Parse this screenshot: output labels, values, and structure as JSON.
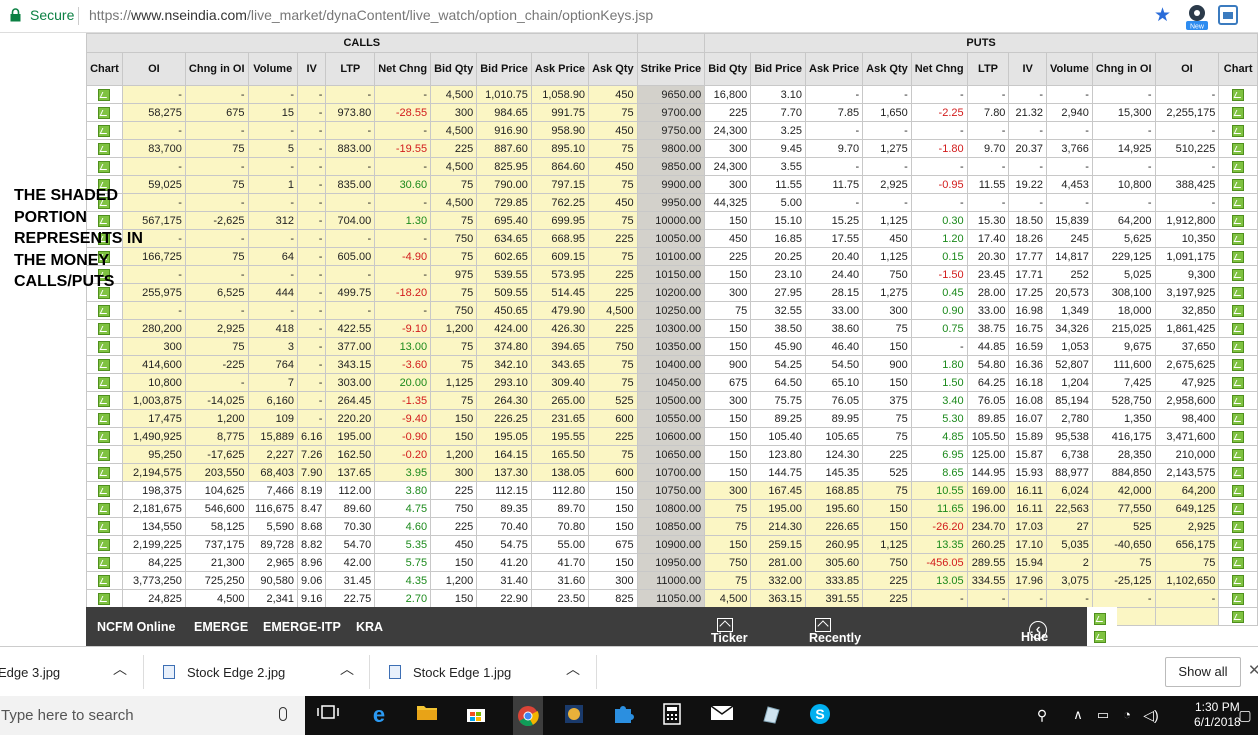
{
  "browser": {
    "secure_label": "Secure",
    "url_prefix": "https://",
    "url_host": "www.nseindia.com",
    "url_path": "/live_market/dynaContent/live_watch/option_chain/optionKeys.jsp"
  },
  "colors": {
    "itm": "#fbf6c4",
    "strike": "#d3d1cb",
    "neg": "#d21c1c",
    "pos": "#1c8a1c",
    "header": "#e4e4e4",
    "footbar": "#3d3d3d"
  },
  "groups": {
    "calls": "CALLS",
    "puts": "PUTS"
  },
  "headers": {
    "calls": [
      "Chart",
      "OI",
      "Chng in OI",
      "Volume",
      "IV",
      "LTP",
      "Net Chng",
      "Bid Qty",
      "Bid Price",
      "Ask Price",
      "Ask Qty"
    ],
    "strike": "Strike Price",
    "puts": [
      "Bid Qty",
      "Bid Price",
      "Ask Price",
      "Ask Qty",
      "Net Chng",
      "LTP",
      "IV",
      "Volume",
      "Chng in OI",
      "OI",
      "Chart"
    ]
  },
  "rows": [
    {
      "strike": "9650.00",
      "call_itm": true,
      "put_itm": false,
      "calls": [
        "-",
        "-",
        "-",
        "-",
        "-",
        "-",
        "4,500",
        "1,010.75",
        "1,058.90",
        "450"
      ],
      "puts": [
        "16,800",
        "3.10",
        "-",
        "-",
        "-",
        "-",
        "-",
        "-",
        "-",
        "-"
      ]
    },
    {
      "strike": "9700.00",
      "call_itm": true,
      "put_itm": false,
      "calls": [
        "58,275",
        "675",
        "15",
        "-",
        "973.80",
        "-28.55",
        "300",
        "984.65",
        "991.75",
        "75"
      ],
      "puts": [
        "225",
        "7.70",
        "7.85",
        "1,650",
        "-2.25",
        "7.80",
        "21.32",
        "2,940",
        "15,300",
        "2,255,175"
      ]
    },
    {
      "strike": "9750.00",
      "call_itm": true,
      "put_itm": false,
      "calls": [
        "-",
        "-",
        "-",
        "-",
        "-",
        "-",
        "4,500",
        "916.90",
        "958.90",
        "450"
      ],
      "puts": [
        "24,300",
        "3.25",
        "-",
        "-",
        "-",
        "-",
        "-",
        "-",
        "-",
        "-"
      ]
    },
    {
      "strike": "9800.00",
      "call_itm": true,
      "put_itm": false,
      "calls": [
        "83,700",
        "75",
        "5",
        "-",
        "883.00",
        "-19.55",
        "225",
        "887.60",
        "895.10",
        "75"
      ],
      "puts": [
        "300",
        "9.45",
        "9.70",
        "1,275",
        "-1.80",
        "9.70",
        "20.37",
        "3,766",
        "14,925",
        "510,225"
      ]
    },
    {
      "strike": "9850.00",
      "call_itm": true,
      "put_itm": false,
      "calls": [
        "-",
        "-",
        "-",
        "-",
        "-",
        "-",
        "4,500",
        "825.95",
        "864.60",
        "450"
      ],
      "puts": [
        "24,300",
        "3.55",
        "-",
        "-",
        "-",
        "-",
        "-",
        "-",
        "-",
        "-"
      ]
    },
    {
      "strike": "9900.00",
      "call_itm": true,
      "put_itm": false,
      "calls": [
        "59,025",
        "75",
        "1",
        "-",
        "835.00",
        "30.60",
        "75",
        "790.00",
        "797.15",
        "75"
      ],
      "puts": [
        "300",
        "11.55",
        "11.75",
        "2,925",
        "-0.95",
        "11.55",
        "19.22",
        "4,453",
        "10,800",
        "388,425"
      ]
    },
    {
      "strike": "9950.00",
      "call_itm": true,
      "put_itm": false,
      "calls": [
        "-",
        "-",
        "-",
        "-",
        "-",
        "-",
        "4,500",
        "729.85",
        "762.25",
        "450"
      ],
      "puts": [
        "44,325",
        "5.00",
        "-",
        "-",
        "-",
        "-",
        "-",
        "-",
        "-",
        "-"
      ]
    },
    {
      "strike": "10000.00",
      "call_itm": true,
      "put_itm": false,
      "calls": [
        "567,175",
        "-2,625",
        "312",
        "-",
        "704.00",
        "1.30",
        "75",
        "695.40",
        "699.95",
        "75"
      ],
      "puts": [
        "150",
        "15.10",
        "15.25",
        "1,125",
        "0.30",
        "15.30",
        "18.50",
        "15,839",
        "64,200",
        "1,912,800"
      ]
    },
    {
      "strike": "10050.00",
      "call_itm": true,
      "put_itm": false,
      "calls": [
        "-",
        "-",
        "-",
        "-",
        "-",
        "-",
        "750",
        "634.65",
        "668.95",
        "225"
      ],
      "puts": [
        "450",
        "16.85",
        "17.55",
        "450",
        "1.20",
        "17.40",
        "18.26",
        "245",
        "5,625",
        "10,350"
      ]
    },
    {
      "strike": "10100.00",
      "call_itm": true,
      "put_itm": false,
      "calls": [
        "166,725",
        "75",
        "64",
        "-",
        "605.00",
        "-4.90",
        "75",
        "602.65",
        "609.15",
        "75"
      ],
      "puts": [
        "225",
        "20.25",
        "20.40",
        "1,125",
        "0.15",
        "20.30",
        "17.77",
        "14,817",
        "229,125",
        "1,091,175"
      ]
    },
    {
      "strike": "10150.00",
      "call_itm": true,
      "put_itm": false,
      "calls": [
        "-",
        "-",
        "-",
        "-",
        "-",
        "-",
        "975",
        "539.55",
        "573.95",
        "225"
      ],
      "puts": [
        "150",
        "23.10",
        "24.40",
        "750",
        "-1.50",
        "23.45",
        "17.71",
        "252",
        "5,025",
        "9,300"
      ]
    },
    {
      "strike": "10200.00",
      "call_itm": true,
      "put_itm": false,
      "calls": [
        "255,975",
        "6,525",
        "444",
        "-",
        "499.75",
        "-18.20",
        "75",
        "509.55",
        "514.45",
        "225"
      ],
      "puts": [
        "300",
        "27.95",
        "28.15",
        "1,275",
        "0.45",
        "28.00",
        "17.25",
        "20,573",
        "308,100",
        "3,197,925"
      ]
    },
    {
      "strike": "10250.00",
      "call_itm": true,
      "put_itm": false,
      "calls": [
        "-",
        "-",
        "-",
        "-",
        "-",
        "-",
        "750",
        "450.65",
        "479.90",
        "4,500"
      ],
      "puts": [
        "75",
        "32.55",
        "33.00",
        "300",
        "0.90",
        "33.00",
        "16.98",
        "1,349",
        "18,000",
        "32,850"
      ]
    },
    {
      "strike": "10300.00",
      "call_itm": true,
      "put_itm": false,
      "calls": [
        "280,200",
        "2,925",
        "418",
        "-",
        "422.55",
        "-9.10",
        "1,200",
        "424.00",
        "426.30",
        "225"
      ],
      "puts": [
        "150",
        "38.50",
        "38.60",
        "75",
        "0.75",
        "38.75",
        "16.75",
        "34,326",
        "215,025",
        "1,861,425"
      ]
    },
    {
      "strike": "10350.00",
      "call_itm": true,
      "put_itm": false,
      "calls": [
        "300",
        "75",
        "3",
        "-",
        "377.00",
        "13.00",
        "75",
        "374.80",
        "394.65",
        "750"
      ],
      "puts": [
        "150",
        "45.90",
        "46.40",
        "150",
        "-",
        "44.85",
        "16.59",
        "1,053",
        "9,675",
        "37,650"
      ]
    },
    {
      "strike": "10400.00",
      "call_itm": true,
      "put_itm": false,
      "calls": [
        "414,600",
        "-225",
        "764",
        "-",
        "343.15",
        "-3.60",
        "75",
        "342.10",
        "343.65",
        "75"
      ],
      "puts": [
        "900",
        "54.25",
        "54.50",
        "900",
        "1.80",
        "54.80",
        "16.36",
        "52,807",
        "111,600",
        "2,675,625"
      ]
    },
    {
      "strike": "10450.00",
      "call_itm": true,
      "put_itm": false,
      "calls": [
        "10,800",
        "-",
        "7",
        "-",
        "303.00",
        "20.00",
        "1,125",
        "293.10",
        "309.40",
        "75"
      ],
      "puts": [
        "675",
        "64.50",
        "65.10",
        "150",
        "1.50",
        "64.25",
        "16.18",
        "1,204",
        "7,425",
        "47,925"
      ]
    },
    {
      "strike": "10500.00",
      "call_itm": true,
      "put_itm": false,
      "calls": [
        "1,003,875",
        "-14,025",
        "6,160",
        "-",
        "264.45",
        "-1.35",
        "75",
        "264.30",
        "265.00",
        "525"
      ],
      "puts": [
        "300",
        "75.75",
        "76.05",
        "375",
        "3.40",
        "76.05",
        "16.08",
        "85,194",
        "528,750",
        "2,958,600"
      ]
    },
    {
      "strike": "10550.00",
      "call_itm": true,
      "put_itm": false,
      "calls": [
        "17,475",
        "1,200",
        "109",
        "-",
        "220.20",
        "-9.40",
        "150",
        "226.25",
        "231.65",
        "600"
      ],
      "puts": [
        "150",
        "89.25",
        "89.95",
        "75",
        "5.30",
        "89.85",
        "16.07",
        "2,780",
        "1,350",
        "98,400"
      ]
    },
    {
      "strike": "10600.00",
      "call_itm": true,
      "put_itm": false,
      "calls": [
        "1,490,925",
        "8,775",
        "15,889",
        "6.16",
        "195.00",
        "-0.90",
        "150",
        "195.05",
        "195.55",
        "225"
      ],
      "puts": [
        "150",
        "105.40",
        "105.65",
        "75",
        "4.85",
        "105.50",
        "15.89",
        "95,538",
        "416,175",
        "3,471,600"
      ]
    },
    {
      "strike": "10650.00",
      "call_itm": true,
      "put_itm": false,
      "calls": [
        "95,250",
        "-17,625",
        "2,227",
        "7.26",
        "162.50",
        "-0.20",
        "1,200",
        "164.15",
        "165.50",
        "75"
      ],
      "puts": [
        "150",
        "123.80",
        "124.30",
        "225",
        "6.95",
        "125.00",
        "15.87",
        "6,738",
        "28,350",
        "210,000"
      ]
    },
    {
      "strike": "10700.00",
      "call_itm": true,
      "put_itm": false,
      "calls": [
        "2,194,575",
        "203,550",
        "68,403",
        "7.90",
        "137.65",
        "3.95",
        "300",
        "137.30",
        "138.05",
        "600"
      ],
      "puts": [
        "150",
        "144.75",
        "145.35",
        "525",
        "8.65",
        "144.95",
        "15.93",
        "88,977",
        "884,850",
        "2,143,575"
      ]
    },
    {
      "strike": "10750.00",
      "call_itm": false,
      "put_itm": true,
      "calls": [
        "198,375",
        "104,625",
        "7,466",
        "8.19",
        "112.00",
        "3.80",
        "225",
        "112.15",
        "112.80",
        "150"
      ],
      "puts": [
        "300",
        "167.45",
        "168.85",
        "75",
        "10.55",
        "169.00",
        "16.11",
        "6,024",
        "42,000",
        "64,200"
      ]
    },
    {
      "strike": "10800.00",
      "call_itm": false,
      "put_itm": true,
      "calls": [
        "2,181,675",
        "546,600",
        "116,675",
        "8.47",
        "89.60",
        "4.75",
        "750",
        "89.35",
        "89.70",
        "150"
      ],
      "puts": [
        "75",
        "195.00",
        "195.60",
        "150",
        "11.65",
        "196.00",
        "16.11",
        "22,563",
        "77,550",
        "649,125"
      ]
    },
    {
      "strike": "10850.00",
      "call_itm": false,
      "put_itm": true,
      "calls": [
        "134,550",
        "58,125",
        "5,590",
        "8.68",
        "70.30",
        "4.60",
        "225",
        "70.40",
        "70.80",
        "150"
      ],
      "puts": [
        "75",
        "214.30",
        "226.65",
        "150",
        "-26.20",
        "234.70",
        "17.03",
        "27",
        "525",
        "2,925"
      ]
    },
    {
      "strike": "10900.00",
      "call_itm": false,
      "put_itm": true,
      "calls": [
        "2,199,225",
        "737,175",
        "89,728",
        "8.82",
        "54.70",
        "5.35",
        "450",
        "54.75",
        "55.00",
        "675"
      ],
      "puts": [
        "150",
        "259.15",
        "260.95",
        "1,125",
        "13.35",
        "260.25",
        "17.10",
        "5,035",
        "-40,650",
        "656,175"
      ]
    },
    {
      "strike": "10950.00",
      "call_itm": false,
      "put_itm": true,
      "calls": [
        "84,225",
        "21,300",
        "2,965",
        "8.96",
        "42.00",
        "5.75",
        "150",
        "41.20",
        "41.70",
        "150"
      ],
      "puts": [
        "750",
        "281.00",
        "305.60",
        "750",
        "-456.05",
        "289.55",
        "15.94",
        "2",
        "75",
        "75"
      ]
    },
    {
      "strike": "11000.00",
      "call_itm": false,
      "put_itm": true,
      "calls": [
        "3,773,250",
        "725,250",
        "90,580",
        "9.06",
        "31.45",
        "4.35",
        "1,200",
        "31.40",
        "31.60",
        "300"
      ],
      "puts": [
        "75",
        "332.00",
        "333.85",
        "225",
        "13.05",
        "334.55",
        "17.96",
        "3,075",
        "-25,125",
        "1,102,650"
      ]
    },
    {
      "strike": "11050.00",
      "call_itm": false,
      "put_itm": true,
      "calls": [
        "24,825",
        "4,500",
        "2,341",
        "9.16",
        "22.75",
        "2.70",
        "150",
        "22.90",
        "23.50",
        "825"
      ],
      "puts": [
        "4,500",
        "363.15",
        "391.55",
        "225",
        "-",
        "-",
        "-",
        "-",
        "-",
        "-"
      ]
    },
    {
      "strike": "",
      "call_itm": false,
      "put_itm": true,
      "calls": [
        "",
        "",
        "",
        "",
        "",
        "",
        "",
        "",
        "",
        ""
      ],
      "puts": [
        "",
        "",
        "",
        "",
        "",
        "",
        "",
        "",
        "",
        ""
      ]
    }
  ],
  "annotation": "THE SHADED PORTION REPRESENTS IN THE MONEY CALLS/PUTS",
  "footer": {
    "ncfm": "NCFM Online",
    "emerge": "EMERGE",
    "emerge_itp": "EMERGE-ITP",
    "kra": "KRA",
    "ticker": "Ticker",
    "recent": "Recently Viewed Quotes",
    "hide": "Hide"
  },
  "downloads": {
    "items": [
      "Edge 3.jpg",
      "Stock Edge 2.jpg",
      "Stock Edge 1.jpg"
    ],
    "show_all": "Show all"
  },
  "taskbar": {
    "search_placeholder": "Type here to search",
    "time": "1:30 PM",
    "date": "6/1/2018"
  }
}
